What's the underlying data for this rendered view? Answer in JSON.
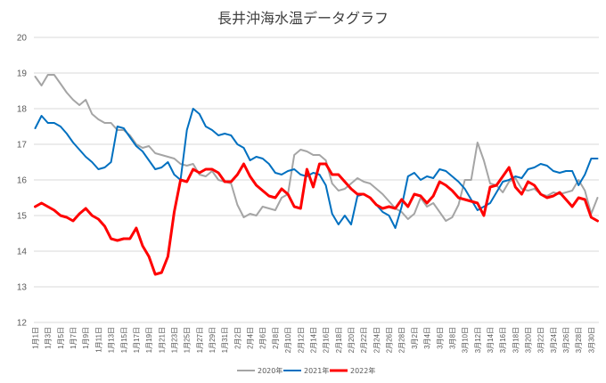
{
  "chart_data": {
    "type": "line",
    "title": "長井沖海水温データグラフ",
    "ylim": [
      12,
      20
    ],
    "yticks": [
      "12",
      "13",
      "14",
      "15",
      "16",
      "17",
      "18",
      "19",
      "20"
    ],
    "x_tick_labels": [
      "1月1日",
      "1月3日",
      "1月5日",
      "1月7日",
      "1月9日",
      "1月11日",
      "1月13日",
      "1月15日",
      "1月17日",
      "1月19日",
      "1月21日",
      "1月23日",
      "1月25日",
      "1月27日",
      "1月29日",
      "1月31日",
      "2月2日",
      "2月4日",
      "2月6日",
      "2月8日",
      "2月10日",
      "2月12日",
      "2月14日",
      "2月16日",
      "2月18日",
      "2月20日",
      "2月22日",
      "2月24日",
      "2月26日",
      "2月28日",
      "3月2日",
      "3月4日",
      "3月6日",
      "3月8日",
      "3月10日",
      "3月12日",
      "3月14日",
      "3月16日",
      "3月18日",
      "3月20日",
      "3月22日",
      "3月24日",
      "3月26日",
      "3月28日",
      "3月30日"
    ],
    "grid": true,
    "legend_position": "bottom",
    "colors": {
      "2020": "#a5a5a5",
      "2021": "#0070c0",
      "2022": "#ff0000"
    },
    "series": [
      {
        "name": "2020年",
        "values": [
          18.9,
          18.65,
          18.95,
          18.95,
          18.7,
          18.45,
          18.25,
          18.1,
          18.25,
          17.85,
          17.7,
          17.6,
          17.6,
          17.4,
          17.4,
          17.25,
          17.0,
          16.9,
          16.95,
          16.75,
          16.7,
          16.65,
          16.6,
          16.45,
          16.4,
          16.45,
          16.15,
          16.1,
          16.25,
          16.0,
          15.95,
          15.9,
          15.3,
          14.95,
          15.05,
          15.0,
          15.25,
          15.2,
          15.15,
          15.5,
          15.6,
          16.7,
          16.85,
          16.8,
          16.7,
          16.7,
          16.55,
          15.9,
          15.7,
          15.75,
          15.9,
          16.05,
          15.95,
          15.9,
          15.75,
          15.6,
          15.4,
          15.2,
          15.1,
          14.9,
          15.05,
          15.5,
          15.25,
          15.35,
          15.1,
          14.85,
          14.95,
          15.3,
          16.0,
          16.0,
          17.05,
          16.55,
          15.9,
          15.85,
          15.65,
          15.95,
          16.05,
          15.75,
          15.7,
          15.75,
          15.6,
          15.55,
          15.65,
          15.6,
          15.65,
          15.7,
          16.0,
          15.7,
          15.05,
          15.5
        ],
        "note": "2020年"
      },
      {
        "name": "2021年",
        "values": [
          17.45,
          17.8,
          17.6,
          17.6,
          17.5,
          17.3,
          17.05,
          16.85,
          16.65,
          16.5,
          16.3,
          16.35,
          16.5,
          17.5,
          17.45,
          17.2,
          16.95,
          16.8,
          16.55,
          16.3,
          16.35,
          16.5,
          16.15,
          16.0,
          17.4,
          18.0,
          17.85,
          17.5,
          17.4,
          17.25,
          17.3,
          17.25,
          17.0,
          16.9,
          16.55,
          16.65,
          16.6,
          16.45,
          16.2,
          16.15,
          16.25,
          16.3,
          16.15,
          16.1,
          16.2,
          16.15,
          15.85,
          15.05,
          14.75,
          15.0,
          14.75,
          15.55,
          15.6,
          15.5,
          15.3,
          15.1,
          15.0,
          14.65,
          15.25,
          16.1,
          16.2,
          16.0,
          16.1,
          16.05,
          16.3,
          16.25,
          16.1,
          15.95,
          15.75,
          15.45,
          15.15,
          15.25,
          15.35,
          15.65,
          15.95,
          16.0,
          16.1,
          16.05,
          16.3,
          16.35,
          16.45,
          16.4,
          16.25,
          16.2,
          16.25,
          16.25,
          15.85,
          16.15,
          16.6,
          16.6
        ]
      },
      {
        "name": "2022年",
        "values": [
          15.25,
          15.35,
          15.25,
          15.15,
          15.0,
          14.95,
          14.85,
          15.05,
          15.2,
          15.0,
          14.9,
          14.7,
          14.35,
          14.3,
          14.35,
          14.35,
          14.65,
          14.15,
          13.85,
          13.35,
          13.4,
          13.85,
          15.1,
          16.0,
          15.95,
          16.3,
          16.2,
          16.3,
          16.3,
          16.2,
          15.95,
          15.95,
          16.15,
          16.45,
          16.1,
          15.85,
          15.7,
          15.55,
          15.5,
          15.75,
          15.6,
          15.25,
          15.2,
          16.3,
          15.8,
          16.45,
          16.45,
          16.15,
          16.15,
          15.95,
          15.75,
          15.6,
          15.6,
          15.5,
          15.3,
          15.2,
          15.25,
          15.2,
          15.45,
          15.25,
          15.6,
          15.55,
          15.35,
          15.55,
          15.95,
          15.85,
          15.7,
          15.5,
          15.45,
          15.4,
          15.35,
          15.0,
          15.8,
          15.85,
          16.1,
          16.35,
          15.8,
          15.6,
          15.95,
          15.85,
          15.6,
          15.5,
          15.55,
          15.65,
          15.45,
          15.25,
          15.5,
          15.45,
          14.95,
          14.85
        ]
      }
    ]
  }
}
